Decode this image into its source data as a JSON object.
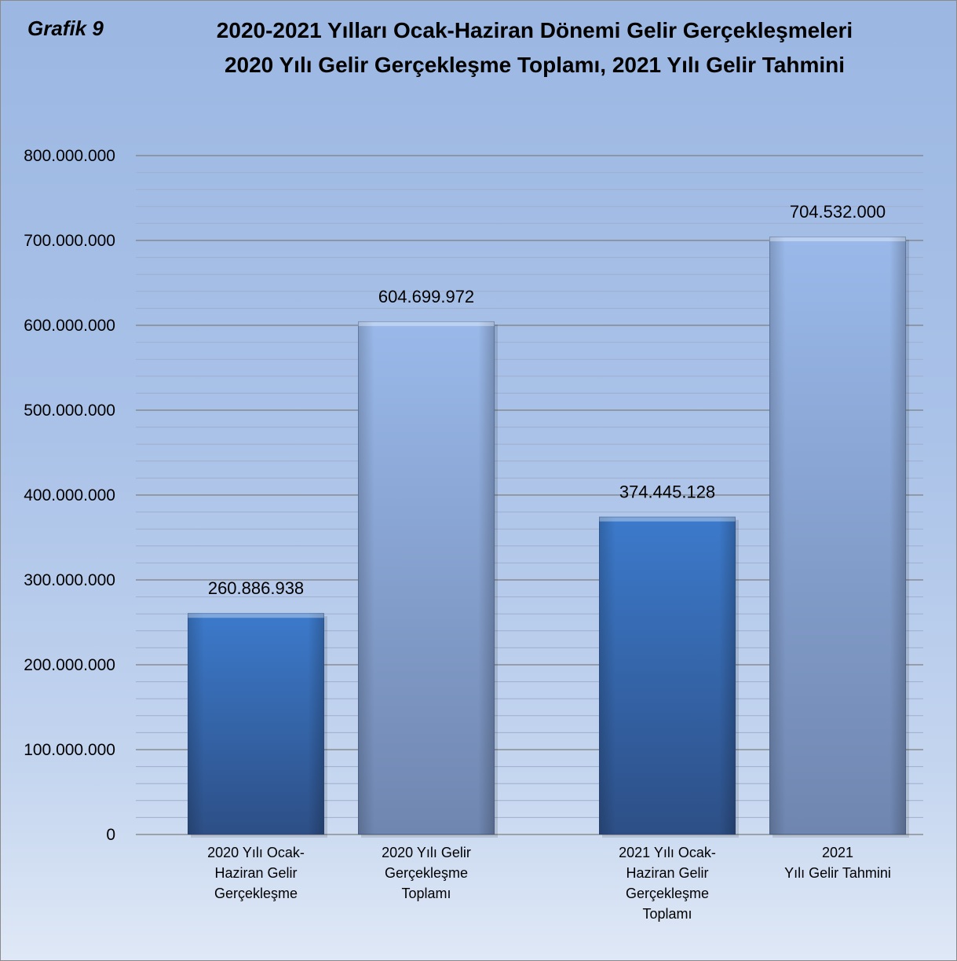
{
  "header": {
    "grafik_label": "Grafik 9",
    "title_line1": "2020-2021 Yılları Ocak-Haziran Dönemi Gelir Gerçekleşmeleri",
    "title_line2": "2020 Yılı Gelir Gerçekleşme Toplamı, 2021 Yılı Gelir Tahmini"
  },
  "chart_data": {
    "type": "bar",
    "title": "2020-2021 Yılları Ocak-Haziran Dönemi Gelir Gerçekleşmeleri 2020 Yılı Gelir Gerçekleşme Toplamı, 2021 Yılı Gelir Tahmini",
    "categories": [
      "2020 Yılı Ocak-\nHaziran Gelir\nGerçekleşme",
      "2020 Yılı Gelir\nGerçekleşme\nToplamı",
      "2021 Yılı Ocak-\nHaziran Gelir\nGerçekleşme\nToplamı",
      "2021\nYılı Gelir Tahmini"
    ],
    "values": [
      260886938,
      604699972,
      374445128,
      704532000
    ],
    "data_labels": [
      "260.886.938",
      "604.699.972",
      "374.445.128",
      "704.532.000"
    ],
    "bar_styles": [
      "dark",
      "light",
      "dark",
      "light"
    ],
    "ylim": [
      0,
      800000000
    ],
    "ytick_values": [
      0,
      100000000,
      200000000,
      300000000,
      400000000,
      500000000,
      600000000,
      700000000,
      800000000
    ],
    "ytick_labels": [
      "0",
      "100.000.000",
      "200.000.000",
      "300.000.000",
      "400.000.000",
      "500.000.000",
      "600.000.000",
      "700.000.000",
      "800.000.000"
    ],
    "minor_grid": true,
    "colors": {
      "dark_top": "#3c7acb",
      "dark_bottom": "#2d4f86",
      "light_top": "#9ab9ea",
      "light_bottom": "#6f86b0",
      "major_grid": "#7f7f7f",
      "minor_grid": "#9faecd"
    }
  }
}
